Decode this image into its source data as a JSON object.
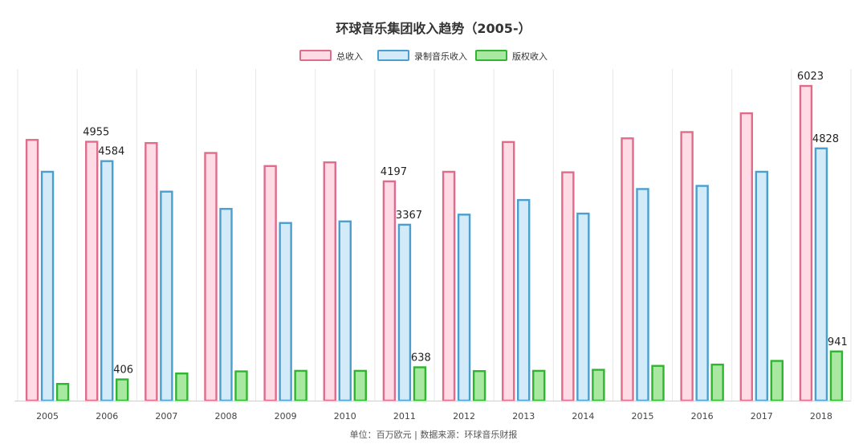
{
  "chart_data": {
    "type": "bar",
    "title": "环球音乐集团收入趋势（2005-）",
    "categories": [
      "2005",
      "2006",
      "2007",
      "2008",
      "2009",
      "2010",
      "2011",
      "2012",
      "2013",
      "2014",
      "2015",
      "2016",
      "2017",
      "2018"
    ],
    "series": [
      {
        "name": "总收入",
        "color": "#e06c8c",
        "fill": "#ffdbe5",
        "values": [
          4990,
          4955,
          4930,
          4740,
          4490,
          4560,
          4197,
          4380,
          4950,
          4370,
          5020,
          5140,
          5500,
          6023
        ]
      },
      {
        "name": "录制音乐收入",
        "color": "#4a9fcf",
        "fill": "#d3ebf9",
        "values": [
          4380,
          4584,
          4000,
          3670,
          3400,
          3430,
          3367,
          3560,
          3840,
          3580,
          4050,
          4110,
          4380,
          4828
        ]
      },
      {
        "name": "版权收入",
        "color": "#2fb52f",
        "fill": "#a8e8a0",
        "values": [
          320,
          406,
          520,
          560,
          570,
          570,
          638,
          565,
          570,
          590,
          665,
          690,
          760,
          941
        ]
      }
    ],
    "data_labels": [
      {
        "series": 0,
        "index": 1,
        "text": "4955"
      },
      {
        "series": 1,
        "index": 1,
        "text": "4584"
      },
      {
        "series": 2,
        "index": 1,
        "text": "406"
      },
      {
        "series": 0,
        "index": 6,
        "text": "4197"
      },
      {
        "series": 1,
        "index": 6,
        "text": "3367"
      },
      {
        "series": 2,
        "index": 6,
        "text": "638"
      },
      {
        "series": 0,
        "index": 13,
        "text": "6023"
      },
      {
        "series": 1,
        "index": 13,
        "text": "4828"
      },
      {
        "series": 2,
        "index": 13,
        "text": "941"
      }
    ],
    "ylim": [
      0,
      6500
    ],
    "grid": "vertical",
    "legend": "top-center",
    "footer": "单位：百万欧元 | 数据来源：环球音乐财报"
  }
}
